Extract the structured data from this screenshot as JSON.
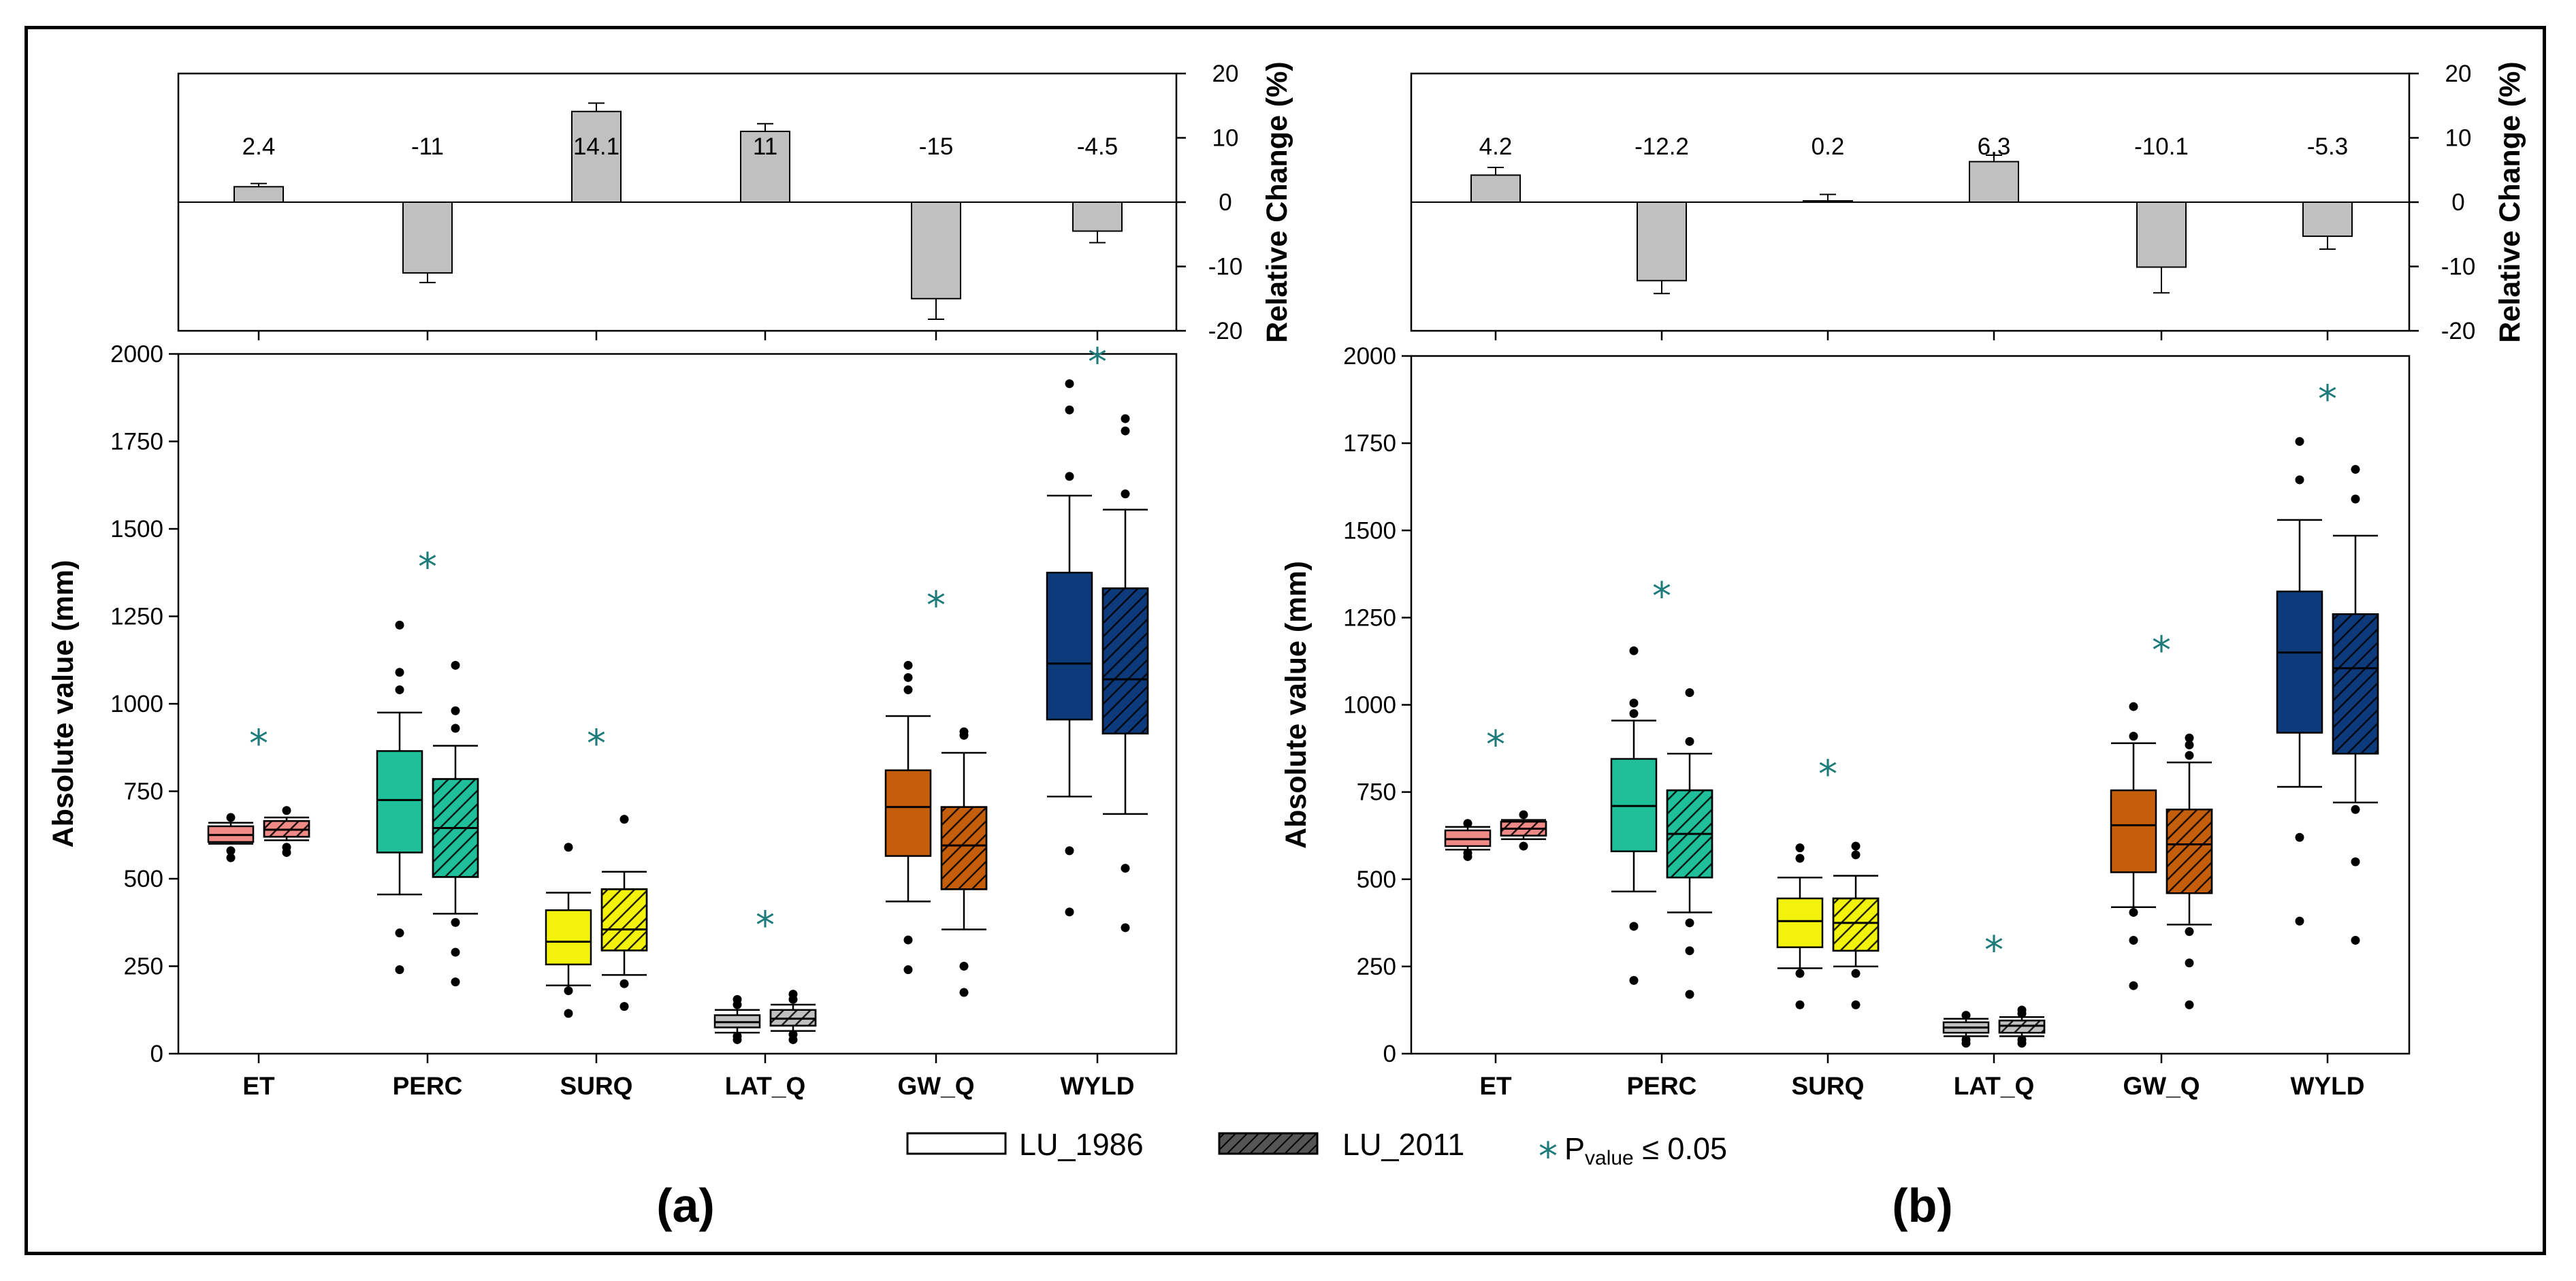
{
  "chart_data": [
    {
      "type": "box",
      "panel_label": "(a)",
      "title": "",
      "ylabel": "Absolute value (mm)",
      "ylim": [
        0,
        2000
      ],
      "yticks": [
        0,
        250,
        500,
        750,
        1000,
        1250,
        1500,
        1750,
        2000
      ],
      "grid": false,
      "categories": [
        "ET",
        "PERC",
        "SURQ",
        "LAT_Q",
        "GW_Q",
        "WYLD"
      ],
      "series_names": [
        "LU_1986",
        "LU_2011"
      ],
      "boxes": [
        {
          "category": "ET",
          "series": "LU_1986",
          "min": 600,
          "q1": 605,
          "median": 625,
          "q3": 650,
          "max": 660,
          "outliers": [
            560,
            580,
            675
          ]
        },
        {
          "category": "ET",
          "series": "LU_2011",
          "min": 610,
          "q1": 620,
          "median": 640,
          "q3": 665,
          "max": 675,
          "outliers": [
            575,
            590,
            695
          ]
        },
        {
          "category": "PERC",
          "series": "LU_1986",
          "min": 455,
          "q1": 575,
          "median": 725,
          "q3": 865,
          "max": 975,
          "outliers": [
            240,
            345,
            1040,
            1090,
            1225
          ]
        },
        {
          "category": "PERC",
          "series": "LU_2011",
          "min": 400,
          "q1": 505,
          "median": 645,
          "q3": 785,
          "max": 880,
          "outliers": [
            205,
            290,
            375,
            930,
            980,
            1110
          ]
        },
        {
          "category": "SURQ",
          "series": "LU_1986",
          "min": 195,
          "q1": 255,
          "median": 320,
          "q3": 410,
          "max": 460,
          "outliers": [
            115,
            180,
            590
          ]
        },
        {
          "category": "SURQ",
          "series": "LU_2011",
          "min": 225,
          "q1": 295,
          "median": 355,
          "q3": 470,
          "max": 520,
          "outliers": [
            135,
            200,
            670
          ]
        },
        {
          "category": "LAT_Q",
          "series": "LU_1986",
          "min": 60,
          "q1": 75,
          "median": 90,
          "q3": 110,
          "max": 125,
          "outliers": [
            40,
            50,
            140,
            155
          ]
        },
        {
          "category": "LAT_Q",
          "series": "LU_2011",
          "min": 65,
          "q1": 80,
          "median": 100,
          "q3": 125,
          "max": 140,
          "outliers": [
            40,
            55,
            155,
            170
          ]
        },
        {
          "category": "GW_Q",
          "series": "LU_1986",
          "min": 435,
          "q1": 565,
          "median": 705,
          "q3": 810,
          "max": 965,
          "outliers": [
            240,
            325,
            1040,
            1075,
            1110
          ]
        },
        {
          "category": "GW_Q",
          "series": "LU_2011",
          "min": 355,
          "q1": 470,
          "median": 595,
          "q3": 705,
          "max": 860,
          "outliers": [
            175,
            250,
            910,
            920
          ]
        },
        {
          "category": "WYLD",
          "series": "LU_1986",
          "min": 735,
          "q1": 955,
          "median": 1115,
          "q3": 1375,
          "max": 1595,
          "outliers": [
            405,
            580,
            1650,
            1840,
            1915
          ]
        },
        {
          "category": "WYLD",
          "series": "LU_2011",
          "min": 685,
          "q1": 915,
          "median": 1070,
          "q3": 1330,
          "max": 1555,
          "outliers": [
            360,
            530,
            1600,
            1780,
            1815
          ]
        }
      ],
      "significance_markers": [
        {
          "category": "ET",
          "y": 900
        },
        {
          "category": "PERC",
          "y": 1405
        },
        {
          "category": "SURQ",
          "y": 900
        },
        {
          "category": "LAT_Q",
          "y": 380
        },
        {
          "category": "GW_Q",
          "y": 1295
        },
        {
          "category": "WYLD",
          "y": 1990
        }
      ],
      "relative_change": {
        "ylabel": "Relative Change (%)",
        "ylim": [
          -20,
          20
        ],
        "yticks": [
          -20,
          -10,
          0,
          10,
          20
        ],
        "values": [
          2.4,
          -11,
          14.1,
          11,
          -15,
          -4.5
        ],
        "errors": [
          0.5,
          1.5,
          1.3,
          1.2,
          3.2,
          1.8
        ],
        "labels": [
          "2.4",
          "-11",
          "14.1",
          "11",
          "-15",
          "-4.5"
        ]
      }
    },
    {
      "type": "box",
      "panel_label": "(b)",
      "title": "",
      "ylabel": "Absolute value (mm)",
      "ylim": [
        0,
        2000
      ],
      "yticks": [
        0,
        250,
        500,
        750,
        1000,
        1250,
        1500,
        1750,
        2000
      ],
      "grid": false,
      "categories": [
        "ET",
        "PERC",
        "SURQ",
        "LAT_Q",
        "GW_Q",
        "WYLD"
      ],
      "series_names": [
        "LU_1986",
        "LU_2011"
      ],
      "boxes": [
        {
          "category": "ET",
          "series": "LU_1986",
          "min": 585,
          "q1": 595,
          "median": 615,
          "q3": 640,
          "max": 650,
          "outliers": [
            565,
            575,
            660
          ]
        },
        {
          "category": "ET",
          "series": "LU_2011",
          "min": 615,
          "q1": 625,
          "median": 645,
          "q3": 665,
          "max": 670,
          "outliers": [
            595,
            685
          ]
        },
        {
          "category": "PERC",
          "series": "LU_1986",
          "min": 465,
          "q1": 580,
          "median": 710,
          "q3": 845,
          "max": 955,
          "outliers": [
            210,
            365,
            975,
            1005,
            1155
          ]
        },
        {
          "category": "PERC",
          "series": "LU_2011",
          "min": 405,
          "q1": 505,
          "median": 630,
          "q3": 755,
          "max": 860,
          "outliers": [
            170,
            295,
            375,
            895,
            1035
          ]
        },
        {
          "category": "SURQ",
          "series": "LU_1986",
          "min": 245,
          "q1": 305,
          "median": 380,
          "q3": 445,
          "max": 505,
          "outliers": [
            140,
            230,
            560,
            590
          ]
        },
        {
          "category": "SURQ",
          "series": "LU_2011",
          "min": 250,
          "q1": 295,
          "median": 375,
          "q3": 445,
          "max": 510,
          "outliers": [
            140,
            230,
            570,
            595
          ]
        },
        {
          "category": "LAT_Q",
          "series": "LU_1986",
          "min": 50,
          "q1": 60,
          "median": 75,
          "q3": 90,
          "max": 100,
          "outliers": [
            30,
            40,
            110
          ]
        },
        {
          "category": "LAT_Q",
          "series": "LU_2011",
          "min": 50,
          "q1": 60,
          "median": 80,
          "q3": 95,
          "max": 105,
          "outliers": [
            30,
            40,
            115,
            125
          ]
        },
        {
          "category": "GW_Q",
          "series": "LU_1986",
          "min": 420,
          "q1": 520,
          "median": 655,
          "q3": 755,
          "max": 890,
          "outliers": [
            195,
            325,
            405,
            910,
            995
          ]
        },
        {
          "category": "GW_Q",
          "series": "LU_2011",
          "min": 370,
          "q1": 460,
          "median": 600,
          "q3": 700,
          "max": 835,
          "outliers": [
            140,
            260,
            350,
            855,
            885,
            905
          ]
        },
        {
          "category": "WYLD",
          "series": "LU_1986",
          "min": 765,
          "q1": 920,
          "median": 1150,
          "q3": 1325,
          "max": 1530,
          "outliers": [
            380,
            620,
            1645,
            1755
          ]
        },
        {
          "category": "WYLD",
          "series": "LU_2011",
          "min": 720,
          "q1": 860,
          "median": 1105,
          "q3": 1260,
          "max": 1485,
          "outliers": [
            325,
            550,
            700,
            1590,
            1675
          ]
        }
      ],
      "significance_markers": [
        {
          "category": "ET",
          "y": 900
        },
        {
          "category": "PERC",
          "y": 1325
        },
        {
          "category": "SURQ",
          "y": 815
        },
        {
          "category": "LAT_Q",
          "y": 310
        },
        {
          "category": "GW_Q",
          "y": 1170
        },
        {
          "category": "WYLD",
          "y": 1890
        }
      ],
      "relative_change": {
        "ylabel": "Relative Change (%)",
        "ylim": [
          -20,
          20
        ],
        "yticks": [
          -20,
          -10,
          0,
          10,
          20
        ],
        "values": [
          4.2,
          -12.2,
          0.2,
          6.3,
          -10.1,
          -5.3
        ],
        "errors": [
          1.2,
          2.0,
          1.0,
          1.0,
          4.0,
          2.0
        ],
        "labels": [
          "4.2",
          "-12.2",
          "0.2",
          "6,3",
          "-10.1",
          "-5.3"
        ]
      }
    }
  ],
  "legend": {
    "item1": "LU_1986",
    "item2": "LU_2011",
    "significance_symbol": "*",
    "significance_prefix": "P",
    "significance_sub": "value",
    "significance_suffix": " ≤ 0.05"
  },
  "colors": {
    "ET": "#f08a86",
    "PERC": "#1fbf9a",
    "SURQ": "#f2f20a",
    "LAT_Q": "#c0c0c0",
    "GW_Q": "#c45e0a",
    "WYLD": "#0d3a7a",
    "bar": "#c0c0c0",
    "star": "#1e7b7b"
  }
}
